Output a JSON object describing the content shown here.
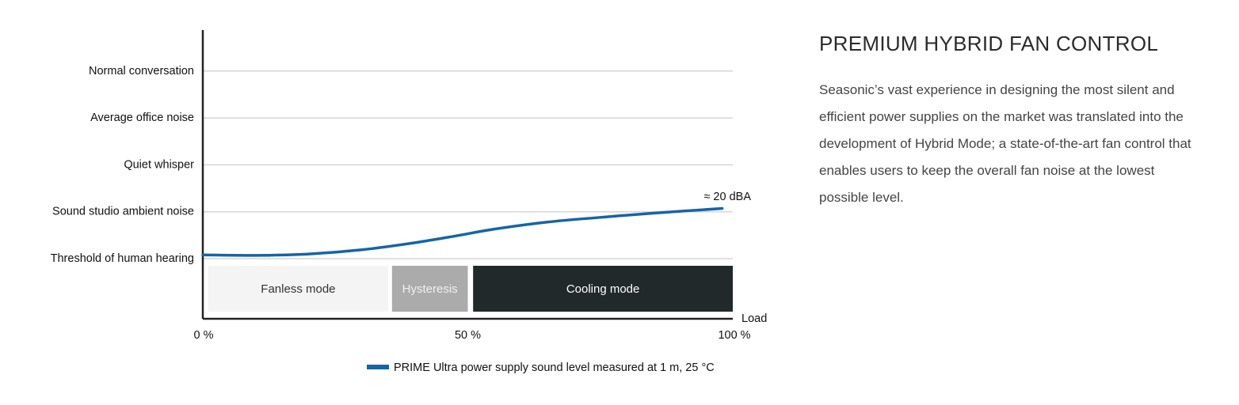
{
  "chart_data": {
    "type": "line",
    "title": "",
    "xlabel": "Load",
    "ylabel": "",
    "xlim": [
      0,
      100
    ],
    "x_ticks": [
      "0 %",
      "50 %",
      "100 %"
    ],
    "x_tick_values": [
      0,
      50,
      100
    ],
    "y_levels": [
      "Threshold of human hearing",
      "Sound studio ambient noise",
      "Quiet whisper",
      "Average office noise",
      "Normal conversation"
    ],
    "grid": true,
    "series": [
      {
        "name": "PRIME Ultra power supply sound level measured at 1 m, 25 °C",
        "color": "#1565a6",
        "x": [
          0,
          10,
          20,
          30,
          40,
          48,
          55,
          65,
          75,
          85,
          98
        ],
        "y": [
          0.08,
          0.07,
          0.1,
          0.19,
          0.34,
          0.49,
          0.63,
          0.78,
          0.88,
          0.97,
          1.07
        ]
      }
    ],
    "annotation": "≈ 20 dBA",
    "mode_bands": [
      {
        "label": "Fanless mode",
        "from": 1,
        "to": 35,
        "color": "#f4f4f4",
        "text_color": "#333333"
      },
      {
        "label": "Hysteresis",
        "from": 35.7,
        "to": 50,
        "color": "#ababab",
        "text_color": "#f0f0f0"
      },
      {
        "label": "Cooling mode",
        "from": 51,
        "to": 100,
        "color": "#22292b",
        "text_color": "#ffffff"
      }
    ],
    "legend_position": "bottom"
  },
  "section": {
    "heading": "PREMIUM HYBRID FAN CONTROL",
    "body": "Seasonic’s vast experience in designing the most silent and efficient power supplies on the market was translated into the development of Hybrid Mode; a state-of-the-art fan control that enables users to keep the overall fan noise at the lowest possible level."
  }
}
